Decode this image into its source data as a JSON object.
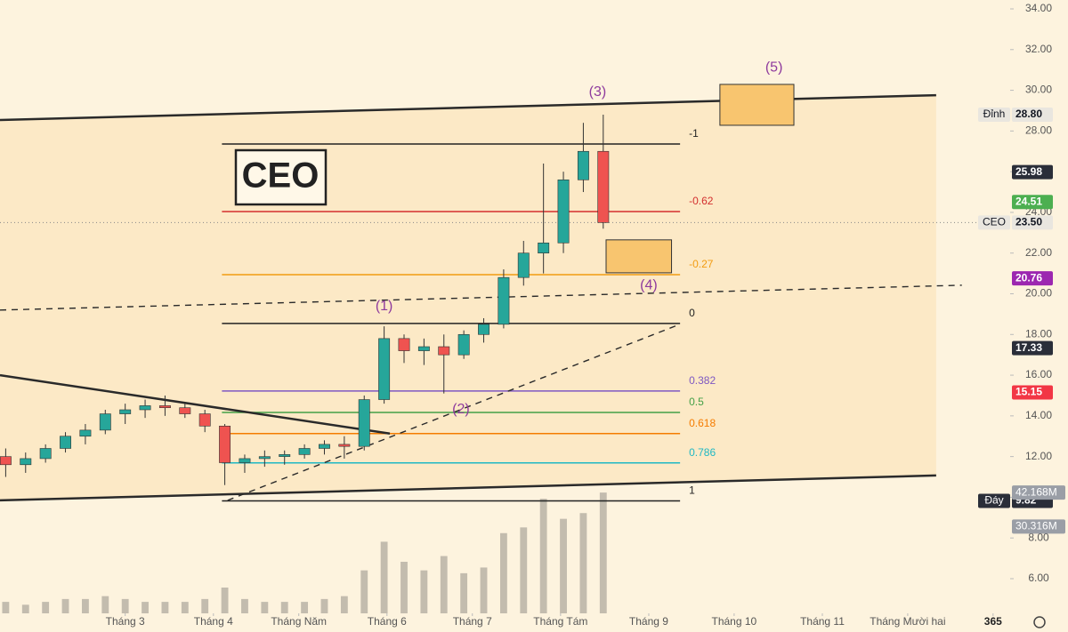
{
  "chart_data": {
    "type": "candlestick",
    "symbol": "CEO",
    "x": [
      18,
      25,
      32,
      39,
      46,
      53,
      60,
      67,
      74,
      81,
      88,
      95,
      102,
      109,
      116,
      123,
      130,
      137,
      144,
      151,
      158,
      165,
      172,
      179,
      186,
      193,
      200,
      207,
      214,
      221,
      228
    ],
    "open": [
      12.0,
      11.6,
      11.9,
      12.4,
      13.0,
      13.3,
      14.1,
      14.3,
      14.5,
      14.4,
      14.1,
      13.5,
      11.7,
      11.9,
      12.0,
      12.1,
      12.4,
      12.6,
      12.5,
      14.8,
      17.8,
      17.2,
      17.4,
      17.0,
      18.0,
      18.5,
      20.8,
      22.0,
      22.5,
      25.6,
      27.0
    ],
    "high": [
      12.4,
      12.2,
      12.6,
      13.2,
      13.6,
      14.3,
      14.6,
      14.8,
      15.0,
      14.6,
      14.3,
      13.6,
      12.1,
      12.3,
      12.3,
      12.6,
      12.8,
      13.0,
      15.0,
      18.4,
      18.0,
      17.8,
      18.0,
      18.2,
      18.8,
      21.2,
      22.6,
      26.4,
      26.0,
      28.4,
      28.8
    ],
    "low": [
      11.0,
      11.2,
      11.7,
      12.2,
      12.6,
      13.1,
      13.6,
      13.9,
      14.0,
      13.9,
      13.2,
      10.6,
      11.2,
      11.5,
      11.6,
      11.9,
      12.1,
      11.9,
      12.3,
      14.6,
      16.6,
      16.5,
      15.1,
      16.8,
      17.6,
      18.3,
      20.4,
      21.0,
      22.0,
      25.0,
      23.2
    ],
    "close": [
      11.6,
      11.9,
      12.4,
      13.0,
      13.3,
      14.1,
      14.3,
      14.5,
      14.4,
      14.1,
      13.5,
      11.7,
      11.9,
      12.0,
      12.1,
      12.4,
      12.6,
      12.5,
      14.8,
      17.8,
      17.2,
      17.4,
      17.0,
      18.0,
      18.5,
      20.8,
      22.0,
      22.5,
      25.6,
      27.0,
      23.5
    ],
    "volume": [
      4,
      3,
      4,
      5,
      5,
      6,
      5,
      4,
      4,
      4,
      5,
      9,
      5,
      4,
      4,
      4,
      5,
      6,
      15,
      25,
      18,
      15,
      20,
      14,
      16,
      28,
      30,
      40,
      33,
      35,
      42.168
    ],
    "up_color": "#26a69a",
    "down_color": "#ef5350",
    "volume_color": "#b8b2a6",
    "volume_ylim": [
      0,
      45
    ],
    "xlim": [
      16,
      371
    ],
    "ylim": [
      6.0,
      34.0
    ],
    "yticks": [
      {
        "value": 34,
        "label": "34.00"
      },
      {
        "value": 32,
        "label": "32.00"
      },
      {
        "value": 30,
        "label": "30.00"
      },
      {
        "value": 28,
        "label": "28.00"
      },
      {
        "value": 26,
        "label": "26.00"
      },
      {
        "value": 24,
        "label": "24.00"
      },
      {
        "value": 22,
        "label": "22.00"
      },
      {
        "value": 20,
        "label": "20.00"
      },
      {
        "value": 18,
        "label": "18.00"
      },
      {
        "value": 16,
        "label": "16.00"
      },
      {
        "value": 14,
        "label": "14.00"
      },
      {
        "value": 12,
        "label": "12.00"
      },
      {
        "value": 10,
        "label": "10.00"
      },
      {
        "value": 8,
        "label": "8.00"
      },
      {
        "value": 6,
        "label": "6.00"
      }
    ],
    "xticks": [
      {
        "value": 60,
        "label": "Tháng 3"
      },
      {
        "value": 91,
        "label": "Tháng 4"
      },
      {
        "value": 121,
        "label": "Tháng Năm"
      },
      {
        "value": 152,
        "label": "Tháng 6"
      },
      {
        "value": 182,
        "label": "Tháng 7"
      },
      {
        "value": 213,
        "label": "Tháng Tám"
      },
      {
        "value": 244,
        "label": "Tháng 9"
      },
      {
        "value": 274,
        "label": "Tháng 10"
      },
      {
        "value": 305,
        "label": "Tháng 11"
      },
      {
        "value": 335,
        "label": "Tháng Mười hai"
      },
      365
    ],
    "fib_x": [
      94,
      255
    ],
    "fib_levels": [
      {
        "level": -1,
        "price": 27.36,
        "color": "#222222"
      },
      {
        "level": -0.62,
        "price": 24.04,
        "color": "#d32f2f"
      },
      {
        "level": -0.27,
        "price": 20.94,
        "color": "#f29c11"
      },
      {
        "level": 0,
        "price": 18.54,
        "color": "#222222"
      },
      {
        "level": 0.382,
        "price": 15.22,
        "color": "#7e57c2"
      },
      {
        "level": 0.5,
        "price": 14.17,
        "color": "#43a047"
      },
      {
        "level": 0.618,
        "price": 13.13,
        "color": "#f57c00"
      },
      {
        "level": 0.786,
        "price": 11.69,
        "color": "#1fb8c4"
      },
      {
        "level": 1,
        "price": 9.82,
        "color": "#222222"
      }
    ],
    "trendlines": [
      {
        "x": [
          16,
          345
        ],
        "y": [
          28.54,
          29.76
        ],
        "style": "solid"
      },
      {
        "x": [
          16,
          345
        ],
        "y": [
          9.85,
          11.07
        ],
        "style": "solid"
      },
      {
        "x": [
          16,
          354
        ],
        "y": [
          19.2,
          20.42
        ],
        "style": "dashed"
      },
      {
        "x": [
          96,
          254
        ],
        "y": [
          9.85,
          18.45
        ],
        "style": "dashed"
      },
      {
        "x": [
          16,
          153
        ],
        "y": [
          16.0,
          13.13
        ],
        "style": "solid"
      }
    ],
    "boxes": [
      {
        "x": [
          269,
          295
        ],
        "y": [
          28.28,
          30.29
        ]
      },
      {
        "x": [
          229,
          252
        ],
        "y": [
          21.03,
          22.65
        ]
      }
    ],
    "box_color": "#f8c56f",
    "wave_labels": [
      {
        "text": "(1)",
        "x": 151,
        "y": 19.37
      },
      {
        "text": "(2)",
        "x": 178,
        "y": 14.3
      },
      {
        "text": "(3)",
        "x": 226,
        "y": 29.9
      },
      {
        "text": "(4)",
        "x": 244,
        "y": 20.4
      },
      {
        "text": "(5)",
        "x": 288,
        "y": 31.1
      }
    ],
    "wave_color": "#8e3a9d",
    "price_tags": [
      {
        "name": "Đỉnh",
        "value": 28.8,
        "label": "28.80",
        "color": "#e9e6df",
        "text_color": "#131722"
      },
      {
        "value": 25.98,
        "label": "25.98",
        "color": "#2a2e39",
        "text_color": "#ffffff"
      },
      {
        "value": 24.51,
        "label": "24.51",
        "color": "#4caf50",
        "text_color": "#ffffff"
      },
      {
        "name": "CEO",
        "value": 23.5,
        "label": "23.50",
        "color": "#e9e6df",
        "text_color": "#131722"
      },
      {
        "value": 20.76,
        "label": "20.76",
        "color": "#9c27b0",
        "text_color": "#ffffff"
      },
      {
        "value": 17.33,
        "label": "17.33",
        "color": "#2a2e39",
        "text_color": "#ffffff"
      },
      {
        "value": 15.15,
        "label": "15.15",
        "color": "#f23645",
        "text_color": "#ffffff"
      },
      {
        "name": "Đáy",
        "value": 9.82,
        "label": "9.82",
        "color": "#2a2e39",
        "text_color": "#ffffff"
      }
    ],
    "volume_tags": [
      {
        "value": 42.168,
        "label": "42.168M",
        "color": "#9a9ea6"
      },
      {
        "value": 30.316,
        "label": "30.316M",
        "color": "#9a9ea6"
      }
    ]
  }
}
